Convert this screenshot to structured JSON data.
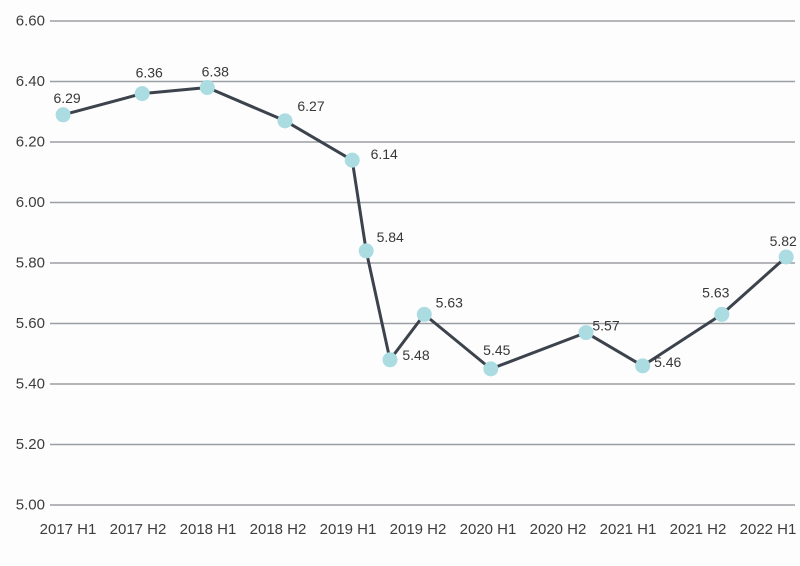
{
  "page": {
    "background": "#fdfdfd"
  },
  "chart_data": {
    "type": "line",
    "title": "",
    "xlabel": "",
    "ylabel": "",
    "grid": "horizontal-only",
    "legend_position": "none",
    "categories": [
      "2017 H1",
      "2017 H2",
      "2018 H1",
      "2018 H2",
      "2019 H1",
      "2019 H2",
      "2020 H1",
      "2020 H2",
      "2021 H1",
      "2021 H2",
      "2022 H1"
    ],
    "y_axis": {
      "min": 5.0,
      "max": 6.6,
      "step": 0.2,
      "tick_labels": [
        "6.60",
        "6.40",
        "6.20",
        "6.00",
        "5.80",
        "5.60",
        "5.40",
        "5.20",
        "5.00"
      ]
    },
    "colors": {
      "line": "#3c434d",
      "marker": "#aadce2",
      "gridline": "#9b9ea3",
      "axis_text": "#3d3d3d",
      "data_label_text": "#383838"
    },
    "series": [
      {
        "name": "values",
        "points": [
          {
            "x": -0.07,
            "value": 6.29,
            "label": "6.29",
            "label_offset": [
              4,
              -17
            ]
          },
          {
            "x": 1.06,
            "value": 6.36,
            "label": "6.36",
            "label_offset": [
              7,
              -21
            ]
          },
          {
            "x": 1.99,
            "value": 6.38,
            "label": "6.38",
            "label_offset": [
              8,
              -16
            ]
          },
          {
            "x": 3.1,
            "value": 6.27,
            "label": "6.27",
            "label_offset": [
              26,
              -15
            ]
          },
          {
            "x": 4.06,
            "value": 6.14,
            "label": "6.14",
            "label_offset": [
              32,
              -6
            ]
          },
          {
            "x": 4.26,
            "value": 5.84,
            "label": "5.84",
            "label_offset": [
              24,
              -14
            ]
          },
          {
            "x": 4.6,
            "value": 5.48,
            "label": "5.48",
            "label_offset": [
              26,
              -5
            ]
          },
          {
            "x": 5.09,
            "value": 5.63,
            "label": "5.63",
            "label_offset": [
              25,
              -12
            ]
          },
          {
            "x": 6.04,
            "value": 5.45,
            "label": "5.45",
            "label_offset": [
              6,
              -19
            ]
          },
          {
            "x": 7.4,
            "value": 5.57,
            "label": "5.57",
            "label_offset": [
              20,
              -7
            ]
          },
          {
            "x": 8.21,
            "value": 5.46,
            "label": "5.46",
            "label_offset": [
              25,
              -4
            ]
          },
          {
            "x": 9.34,
            "value": 5.63,
            "label": "5.63",
            "label_offset": [
              -6,
              -22
            ]
          },
          {
            "x": 10.26,
            "value": 5.82,
            "label": "5.82",
            "label_offset": [
              -3,
              -16
            ]
          }
        ]
      }
    ]
  }
}
